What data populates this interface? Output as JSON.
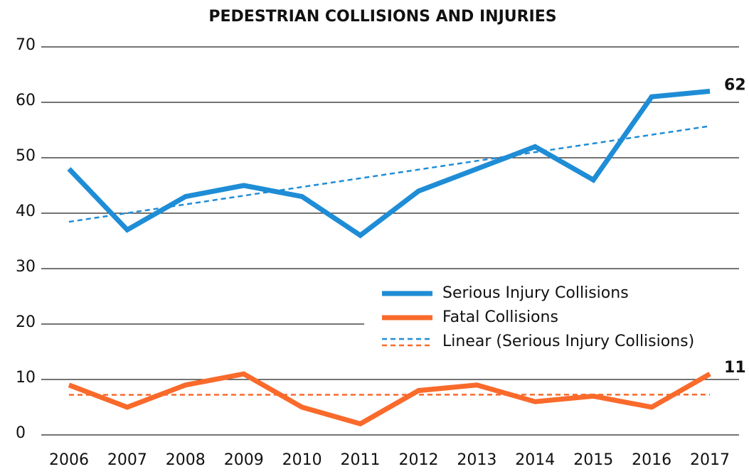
{
  "chart_data": {
    "type": "line",
    "title": "PEDESTRIAN COLLISIONS AND INJURIES",
    "categories": [
      "2006",
      "2007",
      "2008",
      "2009",
      "2010",
      "2011",
      "2012",
      "2013",
      "2014",
      "2015",
      "2016",
      "2017"
    ],
    "series": [
      {
        "name": "Serious Injury Collisions",
        "color": "#1f8dd6",
        "values": [
          48,
          37,
          43,
          45,
          43,
          36,
          44,
          48,
          52,
          46,
          61,
          62
        ],
        "end_label": true
      },
      {
        "name": "Fatal Collisions",
        "color": "#f96a2b",
        "values": [
          9,
          5,
          9,
          11,
          5,
          2,
          8,
          9,
          6,
          7,
          5,
          11
        ],
        "end_label": true
      }
    ],
    "trendlines": [
      {
        "type": "linear",
        "series": 0,
        "name": "Linear (Serious Injury Collisions)",
        "color": "#1f8dd6"
      },
      {
        "type": "linear",
        "series": 1,
        "color": "#f96a2b"
      }
    ],
    "ylim": [
      0,
      70
    ],
    "yticks": [
      0,
      10,
      20,
      30,
      40,
      50,
      60,
      70
    ],
    "grid": true,
    "legend": "lower right"
  }
}
